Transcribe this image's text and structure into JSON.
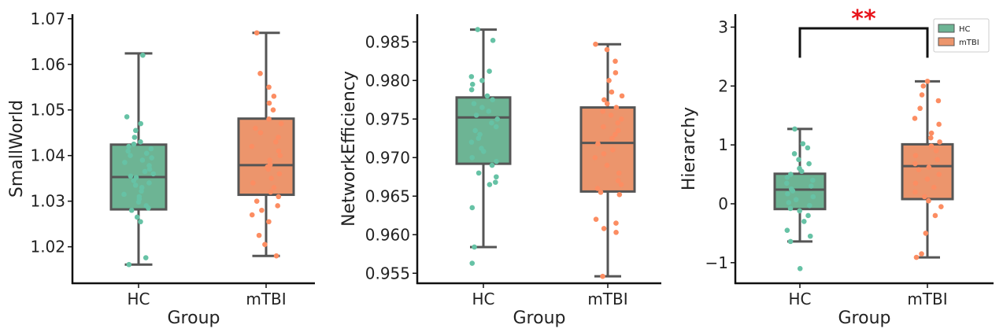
{
  "chart_data": [
    {
      "type": "box",
      "xlabel": "Group",
      "ylabel": "SmallWorld",
      "categories": [
        "HC",
        "mTBI"
      ],
      "ylim": [
        1.012,
        1.071
      ],
      "yticks": [
        1.02,
        1.03,
        1.04,
        1.05,
        1.06,
        1.07
      ],
      "ytick_labels": [
        "1.02",
        "1.03",
        "1.04",
        "1.05",
        "1.06",
        "1.07"
      ],
      "boxes": [
        {
          "name": "HC",
          "whisker_low": 1.0161,
          "q1": 1.0282,
          "median": 1.0353,
          "q3": 1.0424,
          "whisker_high": 1.0624,
          "points": [
            1.0161,
            1.0176,
            1.0255,
            1.0265,
            1.028,
            1.0285,
            1.029,
            1.0298,
            1.0305,
            1.031,
            1.0315,
            1.0322,
            1.033,
            1.0335,
            1.034,
            1.0345,
            1.0352,
            1.0355,
            1.036,
            1.0365,
            1.037,
            1.0378,
            1.0385,
            1.039,
            1.0395,
            1.04,
            1.0405,
            1.041,
            1.0415,
            1.042,
            1.0425,
            1.043,
            1.044,
            1.0455,
            1.047,
            1.0485,
            1.062
          ]
        },
        {
          "name": "mTBI",
          "whisker_low": 1.018,
          "q1": 1.0314,
          "median": 1.0379,
          "q3": 1.0481,
          "whisker_high": 1.0669,
          "points": [
            1.018,
            1.0205,
            1.0225,
            1.0255,
            1.027,
            1.028,
            1.029,
            1.03,
            1.031,
            1.032,
            1.033,
            1.034,
            1.035,
            1.036,
            1.037,
            1.0375,
            1.038,
            1.039,
            1.04,
            1.041,
            1.042,
            1.043,
            1.044,
            1.045,
            1.046,
            1.047,
            1.048,
            1.05,
            1.0515,
            1.053,
            1.055,
            1.058,
            1.0669
          ]
        }
      ]
    },
    {
      "type": "box",
      "xlabel": "Group",
      "ylabel": "NetworkEfficiency",
      "categories": [
        "HC",
        "mTBI"
      ],
      "ylim": [
        0.9537,
        0.9886
      ],
      "yticks": [
        0.955,
        0.96,
        0.965,
        0.97,
        0.975,
        0.98,
        0.985
      ],
      "ytick_labels": [
        "0.955",
        "0.960",
        "0.965",
        "0.970",
        "0.975",
        "0.980",
        "0.985"
      ],
      "boxes": [
        {
          "name": "HC",
          "whisker_low": 0.9584,
          "q1": 0.9692,
          "median": 0.9752,
          "q3": 0.9778,
          "whisker_high": 0.9866,
          "points": [
            0.9563,
            0.9584,
            0.9635,
            0.9665,
            0.9668,
            0.9675,
            0.968,
            0.969,
            0.9695,
            0.97,
            0.9708,
            0.9712,
            0.972,
            0.9725,
            0.973,
            0.9735,
            0.974,
            0.9745,
            0.975,
            0.9755,
            0.976,
            0.9765,
            0.977,
            0.9775,
            0.978,
            0.9788,
            0.9795,
            0.98,
            0.9805,
            0.9812,
            0.9852,
            0.9866
          ]
        },
        {
          "name": "mTBI",
          "whisker_low": 0.9546,
          "q1": 0.9656,
          "median": 0.9719,
          "q3": 0.9765,
          "whisker_high": 0.9847,
          "points": [
            0.9546,
            0.9603,
            0.9608,
            0.9615,
            0.962,
            0.9652,
            0.9655,
            0.966,
            0.9665,
            0.967,
            0.968,
            0.969,
            0.97,
            0.9705,
            0.971,
            0.9718,
            0.9725,
            0.973,
            0.9735,
            0.974,
            0.9745,
            0.975,
            0.9755,
            0.976,
            0.9765,
            0.977,
            0.9775,
            0.978,
            0.9785,
            0.98,
            0.981,
            0.9825,
            0.984,
            0.9847
          ]
        }
      ]
    },
    {
      "type": "box",
      "xlabel": "Group",
      "ylabel": "Hierarchy",
      "categories": [
        "HC",
        "mTBI"
      ],
      "ylim": [
        -1.35,
        3.22
      ],
      "yticks": [
        -1,
        0,
        1,
        2,
        3
      ],
      "ytick_labels": [
        "−1",
        "0",
        "1",
        "2",
        "3"
      ],
      "boxes": [
        {
          "name": "HC",
          "whisker_low": -0.64,
          "q1": -0.09,
          "median": 0.24,
          "q3": 0.51,
          "whisker_high": 1.27,
          "points": [
            -1.1,
            -0.64,
            -0.55,
            -0.45,
            -0.3,
            -0.2,
            -0.12,
            -0.08,
            -0.03,
            0.02,
            0.07,
            0.12,
            0.17,
            0.22,
            0.25,
            0.3,
            0.35,
            0.4,
            0.45,
            0.5,
            0.55,
            0.6,
            0.68,
            0.75,
            0.85,
            0.95,
            1.02,
            1.27
          ]
        },
        {
          "name": "mTBI",
          "whisker_low": -0.91,
          "q1": 0.08,
          "median": 0.64,
          "q3": 1.01,
          "whisker_high": 2.08,
          "points": [
            -0.91,
            -0.85,
            -0.5,
            -0.2,
            -0.05,
            0.05,
            0.12,
            0.2,
            0.28,
            0.35,
            0.42,
            0.5,
            0.58,
            0.62,
            0.68,
            0.75,
            0.82,
            0.9,
            0.98,
            1.05,
            1.12,
            1.2,
            1.35,
            1.45,
            1.62,
            1.75,
            1.85,
            2.0,
            2.08
          ]
        }
      ],
      "annotation": {
        "text": "**",
        "y": 2.98,
        "drop_to": 2.48,
        "color": "#e8141b"
      },
      "legend": {
        "placement": "top-right",
        "entries": [
          {
            "label": "HC"
          },
          {
            "label": "mTBI"
          }
        ]
      }
    }
  ],
  "colors": {
    "HC": "#66c2a5",
    "mTBI": "#fc8d62",
    "HC_box": "#6db494",
    "mTBI_box": "#ec956c",
    "box_edge": "#555555",
    "axis": "#111111"
  }
}
